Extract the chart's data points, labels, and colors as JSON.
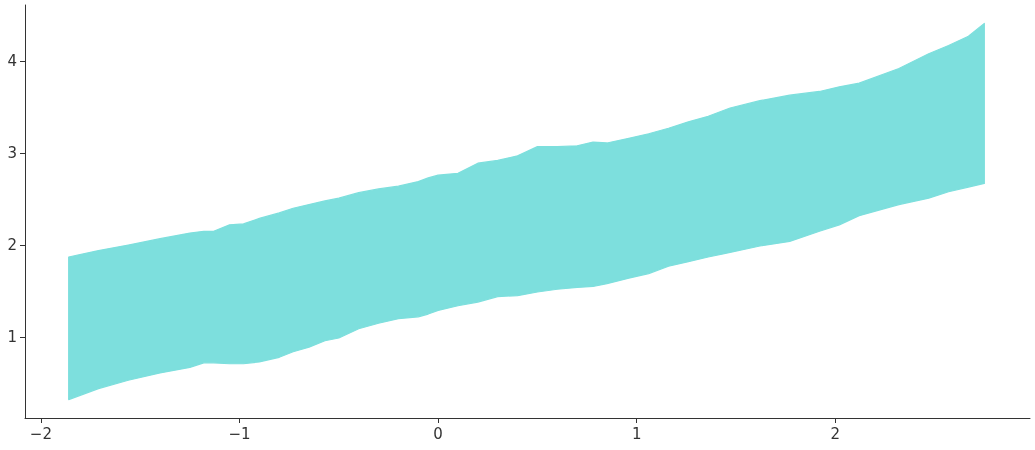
{
  "chart_data": {
    "type": "area",
    "series": [
      {
        "color": "#7ddfdd",
        "x": [
          -1.86,
          -1.71,
          -1.56,
          -1.4,
          -1.25,
          -1.18,
          -1.13,
          -1.05,
          -0.98,
          -0.9,
          -0.8,
          -0.73,
          -0.65,
          -0.57,
          -0.5,
          -0.4,
          -0.3,
          -0.2,
          -0.1,
          -0.05,
          0,
          0.1,
          0.2,
          0.3,
          0.4,
          0.5,
          0.6,
          0.7,
          0.78,
          0.85,
          0.96,
          1.06,
          1.16,
          1.26,
          1.36,
          1.47,
          1.62,
          1.77,
          1.92,
          2.02,
          2.12,
          2.32,
          2.47,
          2.57,
          2.67,
          2.75
        ],
        "values": [
          null,
          null,
          null,
          null,
          null,
          null,
          null,
          null,
          null,
          null,
          null,
          null,
          null,
          null,
          null,
          null,
          null,
          null,
          null,
          null,
          null,
          null,
          null,
          null,
          null,
          null,
          null,
          null,
          null,
          null,
          null,
          null,
          null,
          null,
          null,
          null,
          null,
          null,
          null,
          null,
          null,
          null,
          null,
          null,
          null,
          null
        ],
        "upper": [
          1.87,
          1.94,
          2.0,
          2.07,
          2.13,
          2.15,
          2.15,
          2.22,
          2.23,
          2.29,
          2.35,
          2.4,
          2.44,
          2.48,
          2.51,
          2.57,
          2.61,
          2.64,
          2.69,
          2.73,
          2.76,
          2.78,
          2.89,
          2.92,
          2.97,
          3.07,
          3.07,
          3.08,
          3.12,
          3.11,
          3.16,
          3.21,
          3.27,
          3.34,
          3.4,
          3.49,
          3.57,
          3.63,
          3.67,
          3.72,
          3.76,
          3.92,
          4.08,
          4.17,
          4.27,
          4.41
        ],
        "lower": [
          0.32,
          0.44,
          0.53,
          0.61,
          0.67,
          0.72,
          0.72,
          0.71,
          0.71,
          0.73,
          0.78,
          0.84,
          0.89,
          0.96,
          0.99,
          1.09,
          1.15,
          1.2,
          1.22,
          1.25,
          1.29,
          1.34,
          1.38,
          1.44,
          1.45,
          1.49,
          1.52,
          1.54,
          1.55,
          1.58,
          1.64,
          1.69,
          1.77,
          1.82,
          1.87,
          1.92,
          1.99,
          2.04,
          2.15,
          2.22,
          2.32,
          2.44,
          2.51,
          2.58,
          2.63,
          2.67
        ]
      }
    ],
    "xlim": [
      -2.08,
      2.98
    ],
    "ylim": [
      0.12,
      4.61
    ],
    "xticks": [
      {
        "value": -2,
        "label": "−2"
      },
      {
        "value": -1,
        "label": "−1"
      },
      0,
      1,
      2
    ],
    "yticks": [
      1,
      2,
      3,
      4
    ],
    "grid": false
  }
}
